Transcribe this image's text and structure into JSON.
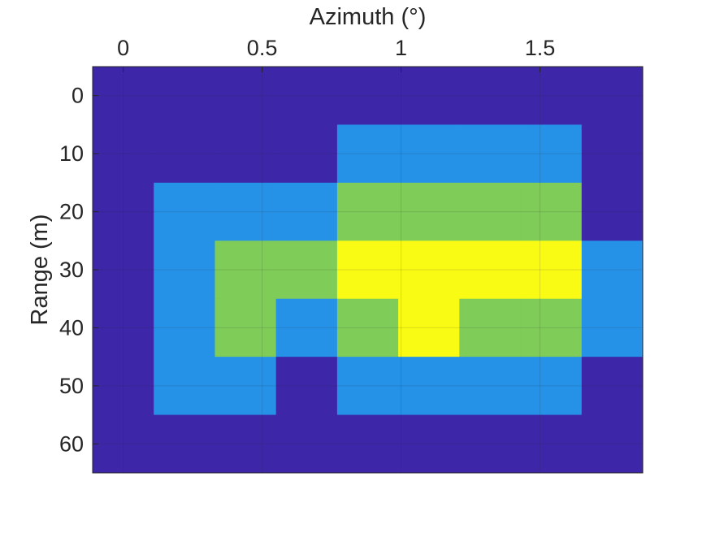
{
  "chart_data": {
    "type": "heatmap",
    "xlabel": "Azimuth (°)",
    "ylabel": "Range (m)",
    "x_axis_position": "top",
    "y_axis_reversed": true,
    "xlim": [
      -0.11,
      1.87
    ],
    "ylim": [
      -5,
      65
    ],
    "x_ticks": [
      0,
      0.5,
      1,
      1.5
    ],
    "x_tick_labels": [
      "0",
      "0.5",
      "1",
      "1.5"
    ],
    "y_ticks": [
      0,
      10,
      20,
      30,
      40,
      50,
      60
    ],
    "y_tick_labels": [
      "0",
      "10",
      "20",
      "30",
      "40",
      "50",
      "60"
    ],
    "x": [
      0,
      0.22,
      0.44,
      0.66,
      0.88,
      1.1,
      1.32,
      1.54,
      1.76
    ],
    "y": [
      0,
      10,
      20,
      30,
      40,
      50,
      60
    ],
    "z": [
      [
        1,
        1,
        1,
        1,
        1,
        1,
        1,
        1,
        1
      ],
      [
        1,
        1,
        1,
        1,
        2,
        2,
        2,
        2,
        1
      ],
      [
        1,
        2,
        2,
        2,
        3,
        3,
        3,
        3,
        1
      ],
      [
        1,
        2,
        3,
        3,
        4,
        4,
        4,
        4,
        2
      ],
      [
        1,
        2,
        3,
        2,
        3,
        4,
        3,
        3,
        2
      ],
      [
        1,
        2,
        2,
        1,
        2,
        2,
        2,
        2,
        1
      ],
      [
        1,
        1,
        1,
        1,
        1,
        1,
        1,
        1,
        1
      ]
    ],
    "colormap": {
      "1": "#3E26A8",
      "2": "#2592E8",
      "3": "#7FCC58",
      "4": "#F9FB15"
    },
    "grid": true,
    "grid_color": "#262626"
  }
}
